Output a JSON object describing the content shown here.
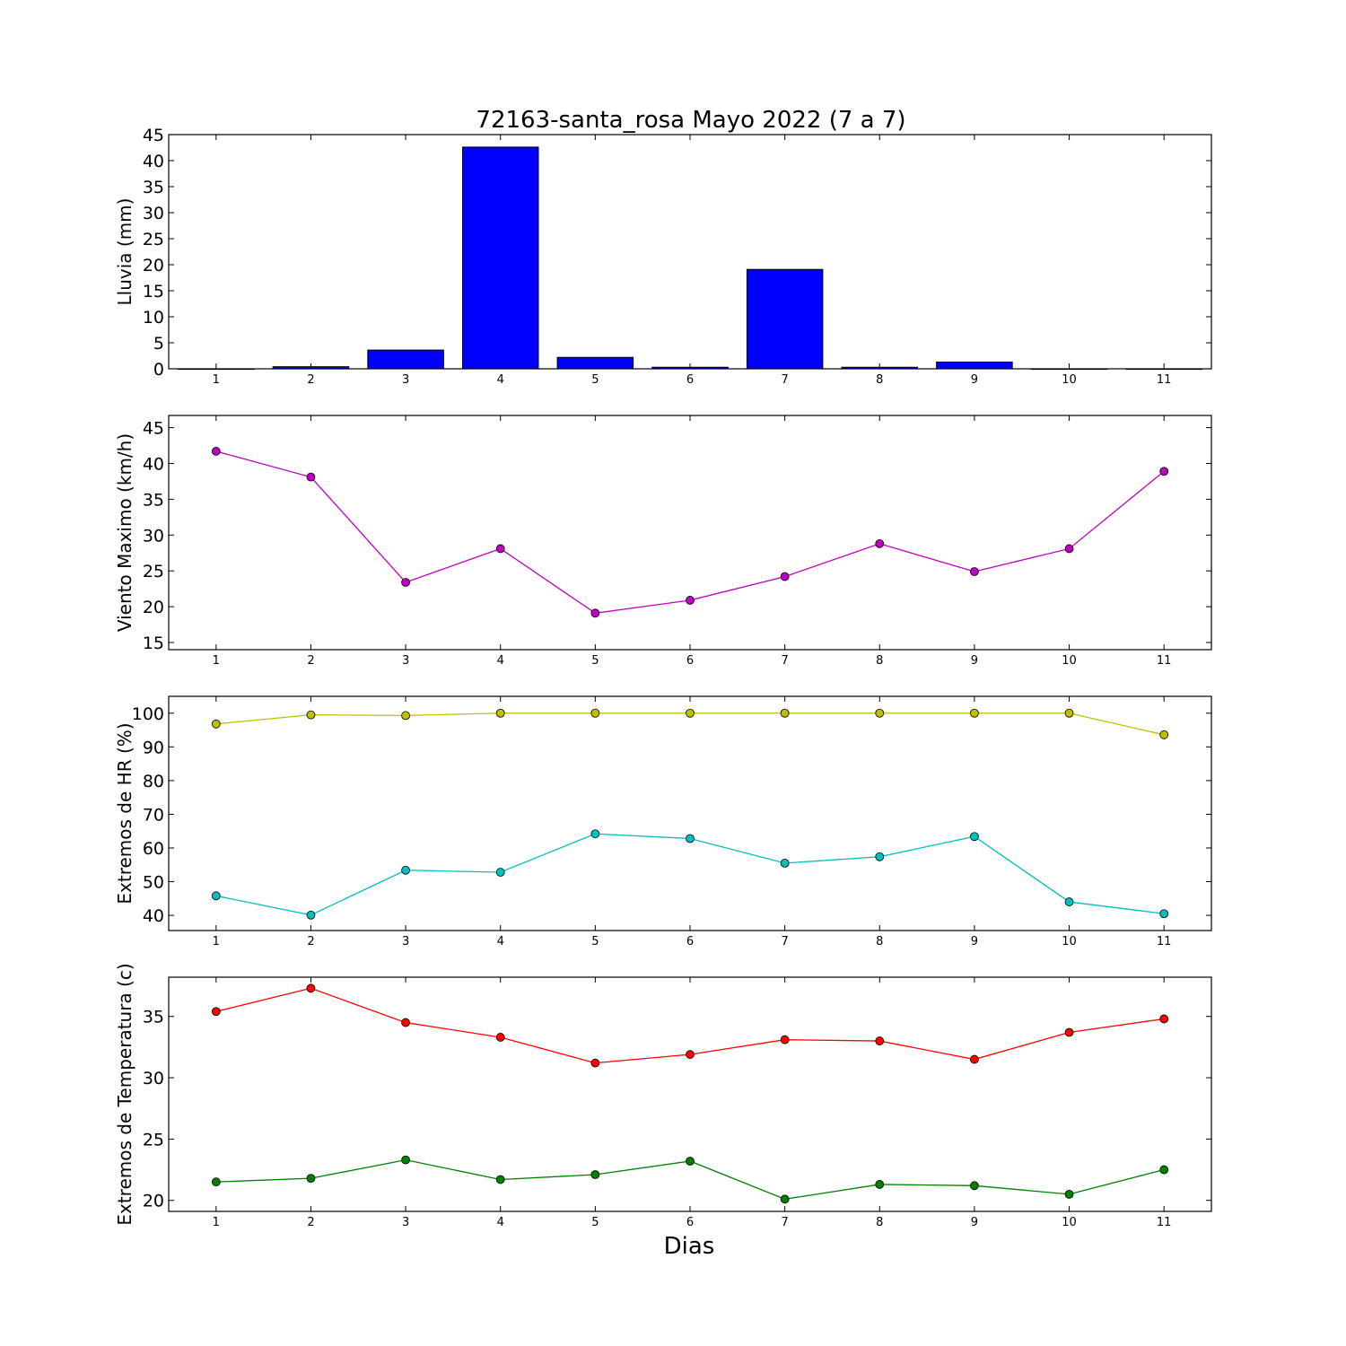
{
  "title": "72163-santa_rosa Mayo 2022  (7 a 7)",
  "xlabel": "Dias",
  "colors": {
    "rain": "#0000ff",
    "wind": "#bf00bf",
    "hr_max": "#bfbf00",
    "hr_min": "#00bfbf",
    "temp_max": "#ff0000",
    "temp_min": "#008000"
  },
  "chart_data": [
    {
      "type": "bar",
      "ylabel": "Lluvia (mm)",
      "x": [
        1,
        2,
        3,
        4,
        5,
        6,
        7,
        8,
        9,
        10,
        11
      ],
      "xticks": [
        "1",
        "2",
        "3",
        "4",
        "5",
        "6",
        "7",
        "8",
        "9",
        "10",
        "11"
      ],
      "xlim": [
        0.5,
        11.5
      ],
      "ylim": [
        0,
        45
      ],
      "yticks": [
        0,
        5,
        10,
        15,
        20,
        25,
        30,
        35,
        40,
        45
      ],
      "series": [
        {
          "values": [
            0.0,
            0.4,
            3.6,
            42.6,
            2.2,
            0.3,
            19.1,
            0.3,
            1.3,
            0.0,
            0.0
          ]
        }
      ]
    },
    {
      "type": "line",
      "ylabel": "Viento Maximo (km/h)",
      "x": [
        1,
        2,
        3,
        4,
        5,
        6,
        7,
        8,
        9,
        10,
        11
      ],
      "xticks": [
        "1",
        "2",
        "3",
        "4",
        "5",
        "6",
        "7",
        "8",
        "9",
        "10",
        "11"
      ],
      "xlim": [
        0.5,
        11.5
      ],
      "ylim": [
        14,
        46.7
      ],
      "yticks": [
        15,
        20,
        25,
        30,
        35,
        40,
        45
      ],
      "series": [
        {
          "values": [
            41.7,
            38.1,
            23.4,
            28.1,
            19.1,
            20.9,
            24.2,
            28.8,
            24.9,
            28.1,
            38.9
          ]
        }
      ]
    },
    {
      "type": "line",
      "ylabel": "Extremos de HR (%)",
      "x": [
        1,
        2,
        3,
        4,
        5,
        6,
        7,
        8,
        9,
        10,
        11
      ],
      "xticks": [
        "1",
        "2",
        "3",
        "4",
        "5",
        "6",
        "7",
        "8",
        "9",
        "10",
        "11"
      ],
      "xlim": [
        0.5,
        11.5
      ],
      "ylim": [
        35.5,
        105
      ],
      "yticks": [
        40,
        50,
        60,
        70,
        80,
        90,
        100
      ],
      "series": [
        {
          "values": [
            96.8,
            99.5,
            99.3,
            100,
            100,
            100,
            100,
            100,
            100,
            100,
            93.6
          ]
        },
        {
          "values": [
            45.8,
            40.1,
            53.4,
            52.8,
            64.2,
            62.8,
            55.5,
            57.4,
            63.4,
            44.0,
            40.5
          ]
        }
      ]
    },
    {
      "type": "line",
      "ylabel": "Extremos de Temperatura (c)",
      "x": [
        1,
        2,
        3,
        4,
        5,
        6,
        7,
        8,
        9,
        10,
        11
      ],
      "xticks": [
        "1",
        "2",
        "3",
        "4",
        "5",
        "6",
        "7",
        "8",
        "9",
        "10",
        "11"
      ],
      "xlim": [
        0.5,
        11.5
      ],
      "ylim": [
        19.1,
        38.2
      ],
      "yticks": [
        20,
        25,
        30,
        35
      ],
      "series": [
        {
          "values": [
            35.4,
            37.3,
            34.5,
            33.3,
            31.2,
            31.9,
            33.1,
            33.0,
            31.5,
            33.7,
            34.8
          ]
        },
        {
          "values": [
            21.5,
            21.8,
            23.3,
            21.7,
            22.1,
            23.2,
            20.1,
            21.3,
            21.2,
            20.5,
            22.5
          ]
        }
      ]
    }
  ]
}
